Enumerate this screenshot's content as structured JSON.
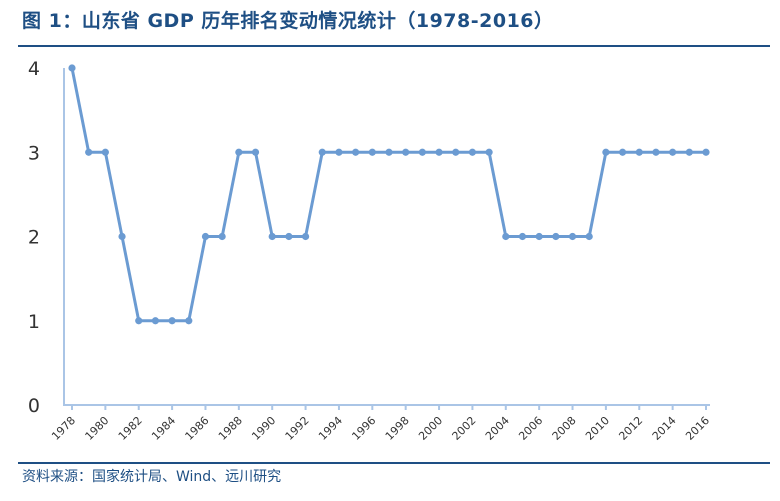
{
  "header": {
    "title": "图 1：山东省 GDP 历年排名变动情况统计（1978-2016）"
  },
  "footer": {
    "source": "资料来源：国家统计局、Wind、远川研究"
  },
  "colors": {
    "title": "#1e4f84",
    "series": "#6b9bd2",
    "axis": "#aac5e6"
  },
  "chart_data": {
    "type": "line",
    "title": "图 1：山东省 GDP 历年排名变动情况统计（1978-2016）",
    "xlabel": "",
    "ylabel": "",
    "ylim": [
      0,
      4
    ],
    "yticks": [
      0,
      1,
      2,
      3,
      4
    ],
    "xticks": [
      "1978",
      "1980",
      "1982",
      "1984",
      "1986",
      "1988",
      "1990",
      "1992",
      "1994",
      "1996",
      "1998",
      "2000",
      "2002",
      "2004",
      "2006",
      "2008",
      "2010",
      "2012",
      "2014",
      "2016"
    ],
    "grid": false,
    "x": [
      1978,
      1979,
      1980,
      1981,
      1982,
      1983,
      1984,
      1985,
      1986,
      1987,
      1988,
      1989,
      1990,
      1991,
      1992,
      1993,
      1994,
      1995,
      1996,
      1997,
      1998,
      1999,
      2000,
      2001,
      2002,
      2003,
      2004,
      2005,
      2006,
      2007,
      2008,
      2009,
      2010,
      2011,
      2012,
      2013,
      2014,
      2015,
      2016
    ],
    "values": [
      4,
      3,
      3,
      2,
      1,
      1,
      1,
      1,
      2,
      2,
      3,
      3,
      2,
      2,
      2,
      3,
      3,
      3,
      3,
      3,
      3,
      3,
      3,
      3,
      3,
      3,
      2,
      2,
      2,
      2,
      2,
      2,
      3,
      3,
      3,
      3,
      3,
      3,
      3
    ]
  }
}
